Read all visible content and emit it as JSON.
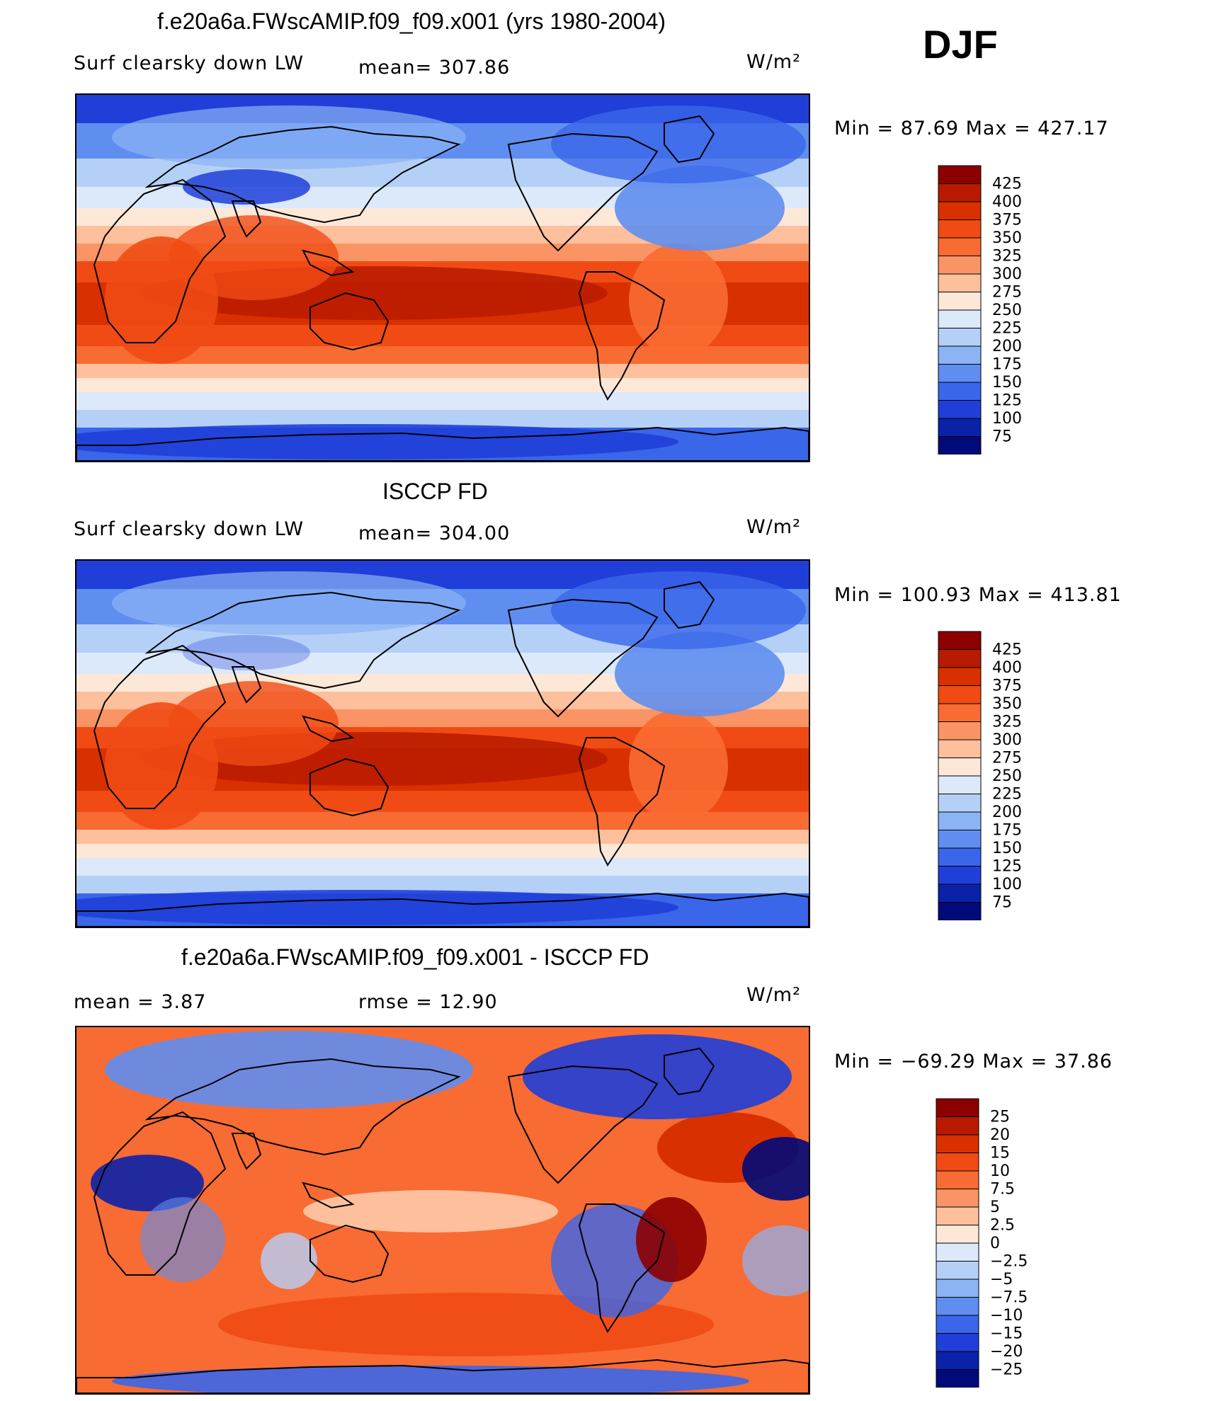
{
  "season": "DJF",
  "panels": [
    {
      "title": "f.e20a6a.FWscAMIP.f09_f09.x001 (yrs 1980-2004)",
      "left_label": "Surf clearsky down LW",
      "center_label": "mean=  307.86",
      "units": "W/m²",
      "minmax": "Min =   87.69 Max = 427.17",
      "type": "abs"
    },
    {
      "title": "ISCCP FD",
      "left_label": "Surf clearsky down LW",
      "center_label": "mean=  304.00",
      "units": "W/m²",
      "minmax": "Min = 100.93 Max = 413.81",
      "type": "abs"
    },
    {
      "title": "f.e20a6a.FWscAMIP.f09_f09.x001 - ISCCP FD",
      "left_label": "mean =     3.87",
      "center_label": "rmse =    12.90",
      "units": "W/m²",
      "minmax": "Min = −69.29 Max =   37.86",
      "type": "diff"
    }
  ],
  "colorbar_abs": {
    "labels": [
      "425",
      "400",
      "375",
      "350",
      "325",
      "300",
      "275",
      "250",
      "225",
      "200",
      "175",
      "150",
      "125",
      "100",
      "75"
    ],
    "colors": [
      "#8c0000",
      "#b81a00",
      "#d93000",
      "#f04b14",
      "#f86b32",
      "#fb9464",
      "#fdbf9c",
      "#fde8d8",
      "#dbe9fb",
      "#b5d0f7",
      "#8cb3f3",
      "#5f8ef0",
      "#3a66ea",
      "#1f3fd8",
      "#0a22a8",
      "#000a78"
    ]
  },
  "colorbar_diff": {
    "labels": [
      "25",
      "20",
      "15",
      "10",
      "7.5",
      "5",
      "2.5",
      "0",
      "−2.5",
      "−5",
      "−7.5",
      "−10",
      "−15",
      "−20",
      "−25"
    ],
    "colors": [
      "#8c0000",
      "#b81a00",
      "#d93000",
      "#f04b14",
      "#f86b32",
      "#fb9464",
      "#fdbf9c",
      "#fde8d8",
      "#dbe9fb",
      "#b5d0f7",
      "#8cb3f3",
      "#5f8ef0",
      "#3a66ea",
      "#1f3fd8",
      "#0a22a8",
      "#000a78"
    ]
  }
}
